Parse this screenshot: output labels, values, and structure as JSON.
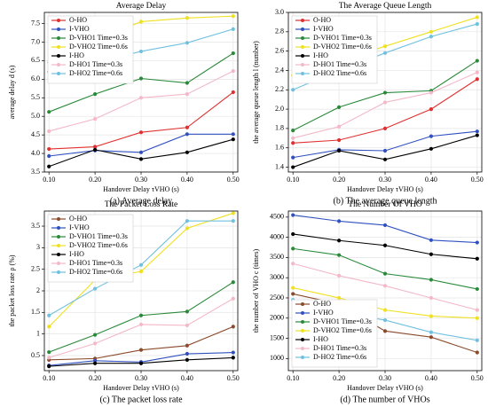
{
  "chart_data": [
    {
      "type": "line",
      "title": "Average Delay",
      "xlabel": "Handover Delay τVHO (s)",
      "ylabel": "average delay d (s)",
      "caption": "(a) Average delay",
      "x": [
        0.1,
        0.2,
        0.3,
        0.4,
        0.5
      ],
      "xlim": [
        0.09,
        0.51
      ],
      "xticks": [
        {
          "value": 0.1,
          "label": "0.10"
        },
        {
          "value": 0.2,
          "label": "0.20"
        },
        {
          "value": 0.3,
          "label": "0.30"
        },
        {
          "value": 0.4,
          "label": "0.40"
        },
        {
          "value": 0.5,
          "label": "0.50"
        }
      ],
      "ylim": [
        3.5,
        7.8
      ],
      "yticks": [
        3.5,
        {
          "value": 4,
          "label": "4.0"
        },
        4.5,
        {
          "value": 5,
          "label": "5.0"
        },
        5.5,
        {
          "value": 6,
          "label": "6.0"
        },
        6.5,
        {
          "value": 7,
          "label": "7.0"
        },
        7.5
      ],
      "grid": true,
      "legend": "upper left",
      "series": [
        {
          "name": "O-HO",
          "color": "#e03030",
          "values": [
            4.12,
            4.18,
            4.57,
            4.7,
            5.65
          ]
        },
        {
          "name": "I-VHO",
          "color": "#3050c0",
          "values": [
            3.93,
            4.08,
            4.03,
            4.52,
            4.52
          ]
        },
        {
          "name": "D-VHO1 Time=0.3s",
          "color": "#2a8a3a",
          "values": [
            5.12,
            5.6,
            6.02,
            5.9,
            6.7
          ]
        },
        {
          "name": "D-VHO2 Time=0.6s",
          "color": "#f0e020",
          "values": [
            6.45,
            7.05,
            7.55,
            7.65,
            7.7
          ]
        },
        {
          "name": "I-HO",
          "color": "#000000",
          "values": [
            3.65,
            4.1,
            3.85,
            4.03,
            4.38
          ]
        },
        {
          "name": "D-HO1 Time=0.3s",
          "color": "#f4b8c8",
          "values": [
            4.6,
            4.93,
            5.5,
            5.6,
            6.22
          ]
        },
        {
          "name": "D-HO2 Time=0.6s",
          "color": "#70c0e0",
          "values": [
            6.2,
            6.45,
            6.75,
            6.98,
            7.35
          ]
        }
      ]
    },
    {
      "type": "line",
      "title": "The Average Queue Length",
      "xlabel": "Handover Delay τVHO (s)",
      "ylabel": "the average queue length l (number)",
      "caption": "(b) The average queue length",
      "x": [
        0.1,
        0.2,
        0.3,
        0.4,
        0.5
      ],
      "xlim": [
        0.09,
        0.51
      ],
      "xticks": [
        {
          "value": 0.1,
          "label": "0.10"
        },
        {
          "value": 0.2,
          "label": "0.20"
        },
        {
          "value": 0.3,
          "label": "0.30"
        },
        {
          "value": 0.4,
          "label": "0.40"
        },
        {
          "value": 0.5,
          "label": "0.50"
        }
      ],
      "ylim": [
        1.35,
        3.0
      ],
      "yticks": [
        1.4,
        1.6,
        1.8,
        {
          "value": 2,
          "label": "2.0"
        },
        2.2,
        2.4,
        2.6,
        2.8,
        {
          "value": 3,
          "label": "3.0"
        }
      ],
      "grid": true,
      "legend": "upper left",
      "series": [
        {
          "name": "O-HO",
          "color": "#e03030",
          "values": [
            1.65,
            1.68,
            1.8,
            2.0,
            2.31
          ]
        },
        {
          "name": "I-VHO",
          "color": "#3050c0",
          "values": [
            1.5,
            1.58,
            1.57,
            1.72,
            1.77
          ]
        },
        {
          "name": "D-VHO1 Time=0.3s",
          "color": "#2a8a3a",
          "values": [
            1.78,
            2.02,
            2.17,
            2.19,
            2.5
          ]
        },
        {
          "name": "D-VHO2 Time=0.6s",
          "color": "#f0e020",
          "values": [
            2.35,
            2.5,
            2.65,
            2.8,
            2.95
          ]
        },
        {
          "name": "I-HO",
          "color": "#000000",
          "values": [
            1.4,
            1.57,
            1.48,
            1.59,
            1.73
          ]
        },
        {
          "name": "D-HO1 Time=0.3s",
          "color": "#f4b8c8",
          "values": [
            1.7,
            1.82,
            2.07,
            2.17,
            2.38
          ]
        },
        {
          "name": "D-HO2 Time=0.6s",
          "color": "#70c0e0",
          "values": [
            2.2,
            2.4,
            2.58,
            2.75,
            2.88
          ]
        }
      ]
    },
    {
      "type": "line",
      "title": "The Packet Loss Rate",
      "xlabel": "Handover Delay τVHO (s)",
      "ylabel": "the packet loss rate ρ (%)",
      "caption": "(c) The packet loss rate",
      "x": [
        0.1,
        0.2,
        0.3,
        0.4,
        0.5
      ],
      "xlim": [
        0.09,
        0.51
      ],
      "xticks": [
        {
          "value": 0.1,
          "label": "0.10"
        },
        {
          "value": 0.2,
          "label": "0.20"
        },
        {
          "value": 0.3,
          "label": "0.30"
        },
        {
          "value": 0.4,
          "label": "0.40"
        },
        {
          "value": 0.5,
          "label": "0.50"
        }
      ],
      "ylim": [
        0.15,
        3.85
      ],
      "yticks": [
        0.5,
        1,
        1.5,
        2,
        2.5,
        3,
        3.5
      ],
      "grid": true,
      "legend": "upper left",
      "series": [
        {
          "name": "O-HO",
          "color": "#8b4a2b",
          "values": [
            0.4,
            0.43,
            0.63,
            0.73,
            1.17
          ]
        },
        {
          "name": "I-VHO",
          "color": "#3050c0",
          "values": [
            0.27,
            0.38,
            0.35,
            0.54,
            0.57
          ]
        },
        {
          "name": "D-VHO1 Time=0.3s",
          "color": "#2a8a3a",
          "values": [
            0.58,
            0.98,
            1.43,
            1.52,
            2.2
          ]
        },
        {
          "name": "D-VHO2 Time=0.6s",
          "color": "#f0e020",
          "values": [
            1.17,
            2.25,
            2.45,
            3.45,
            3.8
          ]
        },
        {
          "name": "I-HO",
          "color": "#000000",
          "values": [
            0.25,
            0.32,
            0.32,
            0.4,
            0.45
          ]
        },
        {
          "name": "D-HO1 Time=0.3s",
          "color": "#f4b8c8",
          "values": [
            0.45,
            0.78,
            1.22,
            1.2,
            1.82
          ]
        },
        {
          "name": "D-HO2 Time=0.6s",
          "color": "#70c0e0",
          "values": [
            1.43,
            2.05,
            2.6,
            3.62,
            3.62
          ]
        }
      ]
    },
    {
      "type": "line",
      "title": "The Number Of VHO",
      "xlabel": "Handover Delay τVHO (s)",
      "ylabel": "the number of VHO c (times)",
      "caption": "(d) The number of VHOs",
      "x": [
        0.1,
        0.2,
        0.3,
        0.4,
        0.5
      ],
      "xlim": [
        0.09,
        0.51
      ],
      "xticks": [
        {
          "value": 0.1,
          "label": "0.10"
        },
        {
          "value": 0.2,
          "label": "0.20"
        },
        {
          "value": 0.3,
          "label": "0.30"
        },
        {
          "value": 0.4,
          "label": "0.40"
        },
        {
          "value": 0.5,
          "label": "0.50"
        }
      ],
      "ylim": [
        700,
        4650
      ],
      "yticks": [
        1000,
        1500,
        2000,
        2500,
        3000,
        3500,
        4000,
        4500
      ],
      "grid": true,
      "legend": "lower left",
      "series": [
        {
          "name": "O-HO",
          "color": "#8b4a2b",
          "values": [
            2600,
            2350,
            1680,
            1530,
            1150
          ]
        },
        {
          "name": "I-VHO",
          "color": "#3050c0",
          "values": [
            4550,
            4400,
            4300,
            3930,
            3870
          ]
        },
        {
          "name": "D-VHO1 Time=0.3s",
          "color": "#2a8a3a",
          "values": [
            3720,
            3560,
            3100,
            2950,
            2720
          ]
        },
        {
          "name": "D-VHO2 Time=0.6s",
          "color": "#f0e020",
          "values": [
            2750,
            2500,
            2200,
            2050,
            2000
          ]
        },
        {
          "name": "I-HO",
          "color": "#000000",
          "values": [
            4080,
            3920,
            3800,
            3580,
            3470
          ]
        },
        {
          "name": "D-HO1 Time=0.3s",
          "color": "#f4b8c8",
          "values": [
            3350,
            3050,
            2800,
            2500,
            2200
          ]
        },
        {
          "name": "D-HO2 Time=0.6s",
          "color": "#70c0e0",
          "values": [
            2450,
            2150,
            1950,
            1650,
            1450
          ]
        }
      ]
    }
  ]
}
